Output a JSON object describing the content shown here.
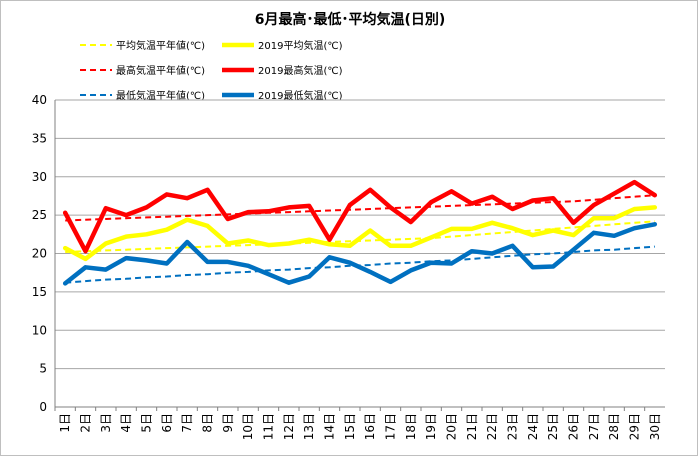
{
  "chart_data": {
    "type": "line",
    "title": "6月最高･最低･平均気温(日別)",
    "xlabel": "",
    "ylabel": "",
    "ylim": [
      0,
      40
    ],
    "yticks": [
      0,
      5,
      10,
      15,
      20,
      25,
      30,
      35,
      40
    ],
    "grid": true,
    "legend_position": "top",
    "categories": [
      "1日",
      "2日",
      "3日",
      "4日",
      "5日",
      "6日",
      "7日",
      "8日",
      "9日",
      "10日",
      "11日",
      "12日",
      "13日",
      "14日",
      "15日",
      "16日",
      "17日",
      "18日",
      "19日",
      "20日",
      "21日",
      "22日",
      "23日",
      "24日",
      "25日",
      "26日",
      "27日",
      "28日",
      "29日",
      "30日"
    ],
    "series": [
      {
        "name": "平均気温平年値(℃)",
        "color": "#FFFF00",
        "dashed": true,
        "values": [
          20.2,
          20.3,
          20.4,
          20.5,
          20.6,
          20.7,
          20.8,
          20.9,
          21.0,
          21.1,
          21.2,
          21.3,
          21.4,
          21.5,
          21.6,
          21.7,
          21.8,
          21.9,
          22.0,
          22.2,
          22.4,
          22.6,
          22.8,
          23.0,
          23.2,
          23.4,
          23.6,
          23.8,
          24.0,
          24.2
        ]
      },
      {
        "name": "2019平均気温(℃)",
        "color": "#FFFF00",
        "dashed": false,
        "values": [
          20.7,
          19.3,
          21.3,
          22.2,
          22.5,
          23.1,
          24.4,
          23.6,
          21.3,
          21.7,
          21.1,
          21.3,
          21.8,
          21.2,
          21.0,
          23.0,
          21.0,
          21.0,
          22.1,
          23.2,
          23.2,
          24.0,
          23.3,
          22.4,
          23.0,
          22.4,
          24.6,
          24.6,
          25.8,
          26.0
        ]
      },
      {
        "name": "最高気温平年値(℃)",
        "color": "#FF0000",
        "dashed": true,
        "values": [
          24.3,
          24.4,
          24.5,
          24.6,
          24.7,
          24.8,
          24.9,
          25.0,
          25.1,
          25.2,
          25.3,
          25.4,
          25.5,
          25.6,
          25.7,
          25.8,
          25.9,
          26.0,
          26.1,
          26.2,
          26.3,
          26.4,
          26.5,
          26.6,
          26.7,
          26.8,
          27.0,
          27.2,
          27.4,
          27.6
        ]
      },
      {
        "name": "2019最高気温(℃)",
        "color": "#FF0000",
        "dashed": false,
        "values": [
          25.3,
          20.3,
          25.9,
          25.0,
          26.0,
          27.7,
          27.2,
          28.3,
          24.5,
          25.4,
          25.5,
          26.0,
          26.2,
          21.8,
          26.3,
          28.3,
          26.0,
          24.1,
          26.7,
          28.1,
          26.5,
          27.4,
          25.8,
          26.9,
          27.2,
          24.0,
          26.3,
          27.8,
          29.3,
          27.6
        ]
      },
      {
        "name": "最低気温平年値(℃)",
        "color": "#0070C0",
        "dashed": true,
        "values": [
          16.2,
          16.4,
          16.6,
          16.7,
          16.9,
          17.0,
          17.2,
          17.3,
          17.5,
          17.6,
          17.8,
          17.9,
          18.1,
          18.2,
          18.4,
          18.5,
          18.7,
          18.8,
          19.0,
          19.1,
          19.3,
          19.5,
          19.7,
          19.9,
          20.0,
          20.2,
          20.4,
          20.5,
          20.7,
          20.9
        ]
      },
      {
        "name": "2019最低気温(℃)",
        "color": "#0070C0",
        "dashed": false,
        "values": [
          16.1,
          18.2,
          17.9,
          19.4,
          19.1,
          18.7,
          21.5,
          18.9,
          18.9,
          18.4,
          17.3,
          16.2,
          17.0,
          19.5,
          18.8,
          17.6,
          16.3,
          17.8,
          18.8,
          18.7,
          20.3,
          20.0,
          21.0,
          18.2,
          18.3,
          20.5,
          22.7,
          22.3,
          23.3,
          23.8
        ]
      }
    ]
  }
}
